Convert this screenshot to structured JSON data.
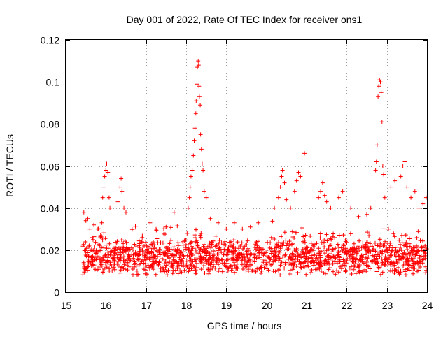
{
  "chart_data": {
    "type": "scatter",
    "title": "Day 001 of 2022, Rate Of TEC Index for receiver ons1",
    "xlabel": "GPS time / hours",
    "ylabel": "ROTI / TECUs",
    "xlim": [
      15,
      24
    ],
    "ylim": [
      0,
      0.12
    ],
    "x_ticks": [
      15,
      16,
      17,
      18,
      19,
      20,
      21,
      22,
      23,
      24
    ],
    "x_tick_labels": [
      "15",
      "16",
      "17",
      "18",
      "19",
      "20",
      "21",
      "22",
      "23",
      "24"
    ],
    "y_ticks": [
      0,
      0.02,
      0.04,
      0.06,
      0.08,
      0.1,
      0.12
    ],
    "y_tick_labels": [
      "0",
      "0.02",
      "0.04",
      "0.06",
      "0.08",
      "0.1",
      "0.12"
    ],
    "grid": true,
    "marker": "+",
    "series": [
      {
        "name": "ROTI",
        "color": "#ff0000",
        "baseline_points": {
          "x_start": 15.42,
          "x_end": 24.0,
          "count": 1500,
          "typical_range": [
            0.005,
            0.035
          ]
        },
        "points": [
          [
            15.45,
            0.038
          ],
          [
            15.5,
            0.034
          ],
          [
            15.55,
            0.035
          ],
          [
            15.6,
            0.03
          ],
          [
            15.7,
            0.032
          ],
          [
            15.8,
            0.03
          ],
          [
            15.9,
            0.033
          ],
          [
            15.92,
            0.045
          ],
          [
            15.95,
            0.05
          ],
          [
            15.97,
            0.055
          ],
          [
            16.0,
            0.058
          ],
          [
            16.02,
            0.061
          ],
          [
            16.05,
            0.057
          ],
          [
            16.08,
            0.045
          ],
          [
            16.1,
            0.04
          ],
          [
            16.3,
            0.043
          ],
          [
            16.35,
            0.05
          ],
          [
            16.38,
            0.054
          ],
          [
            16.4,
            0.048
          ],
          [
            16.45,
            0.04
          ],
          [
            16.5,
            0.038
          ],
          [
            16.7,
            0.03
          ],
          [
            17.1,
            0.033
          ],
          [
            17.25,
            0.03
          ],
          [
            17.5,
            0.031
          ],
          [
            17.7,
            0.038
          ],
          [
            18.05,
            0.04
          ],
          [
            18.08,
            0.045
          ],
          [
            18.1,
            0.05
          ],
          [
            18.12,
            0.055
          ],
          [
            18.15,
            0.058
          ],
          [
            18.18,
            0.065
          ],
          [
            18.2,
            0.072
          ],
          [
            18.22,
            0.078
          ],
          [
            18.24,
            0.085
          ],
          [
            18.25,
            0.091
          ],
          [
            18.27,
            0.099
          ],
          [
            18.28,
            0.107
          ],
          [
            18.3,
            0.11
          ],
          [
            18.31,
            0.108
          ],
          [
            18.32,
            0.098
          ],
          [
            18.33,
            0.093
          ],
          [
            18.35,
            0.089
          ],
          [
            18.36,
            0.075
          ],
          [
            18.38,
            0.068
          ],
          [
            18.4,
            0.061
          ],
          [
            18.42,
            0.058
          ],
          [
            18.45,
            0.048
          ],
          [
            18.5,
            0.045
          ],
          [
            18.6,
            0.035
          ],
          [
            18.8,
            0.033
          ],
          [
            19.0,
            0.03
          ],
          [
            19.2,
            0.033
          ],
          [
            19.4,
            0.03
          ],
          [
            19.6,
            0.031
          ],
          [
            19.8,
            0.033
          ],
          [
            20.2,
            0.04
          ],
          [
            20.3,
            0.045
          ],
          [
            20.35,
            0.05
          ],
          [
            20.38,
            0.055
          ],
          [
            20.4,
            0.058
          ],
          [
            20.45,
            0.052
          ],
          [
            20.5,
            0.044
          ],
          [
            20.6,
            0.04
          ],
          [
            20.7,
            0.048
          ],
          [
            20.75,
            0.053
          ],
          [
            20.8,
            0.057
          ],
          [
            20.85,
            0.055
          ],
          [
            20.95,
            0.066
          ],
          [
            21.3,
            0.045
          ],
          [
            21.35,
            0.048
          ],
          [
            21.4,
            0.052
          ],
          [
            21.45,
            0.046
          ],
          [
            21.5,
            0.043
          ],
          [
            21.6,
            0.04
          ],
          [
            21.8,
            0.045
          ],
          [
            21.9,
            0.048
          ],
          [
            22.1,
            0.04
          ],
          [
            22.3,
            0.036
          ],
          [
            22.5,
            0.037
          ],
          [
            22.6,
            0.04
          ],
          [
            22.72,
            0.058
          ],
          [
            22.74,
            0.062
          ],
          [
            22.76,
            0.07
          ],
          [
            22.78,
            0.093
          ],
          [
            22.8,
            0.098
          ],
          [
            22.82,
            0.101
          ],
          [
            22.84,
            0.1
          ],
          [
            22.86,
            0.095
          ],
          [
            22.88,
            0.081
          ],
          [
            22.9,
            0.06
          ],
          [
            22.92,
            0.056
          ],
          [
            22.95,
            0.045
          ],
          [
            23.1,
            0.05
          ],
          [
            23.2,
            0.053
          ],
          [
            23.35,
            0.055
          ],
          [
            23.4,
            0.06
          ],
          [
            23.45,
            0.062
          ],
          [
            23.5,
            0.05
          ],
          [
            23.6,
            0.045
          ],
          [
            23.7,
            0.048
          ],
          [
            23.8,
            0.04
          ],
          [
            23.9,
            0.042
          ],
          [
            23.98,
            0.045
          ]
        ]
      }
    ]
  }
}
